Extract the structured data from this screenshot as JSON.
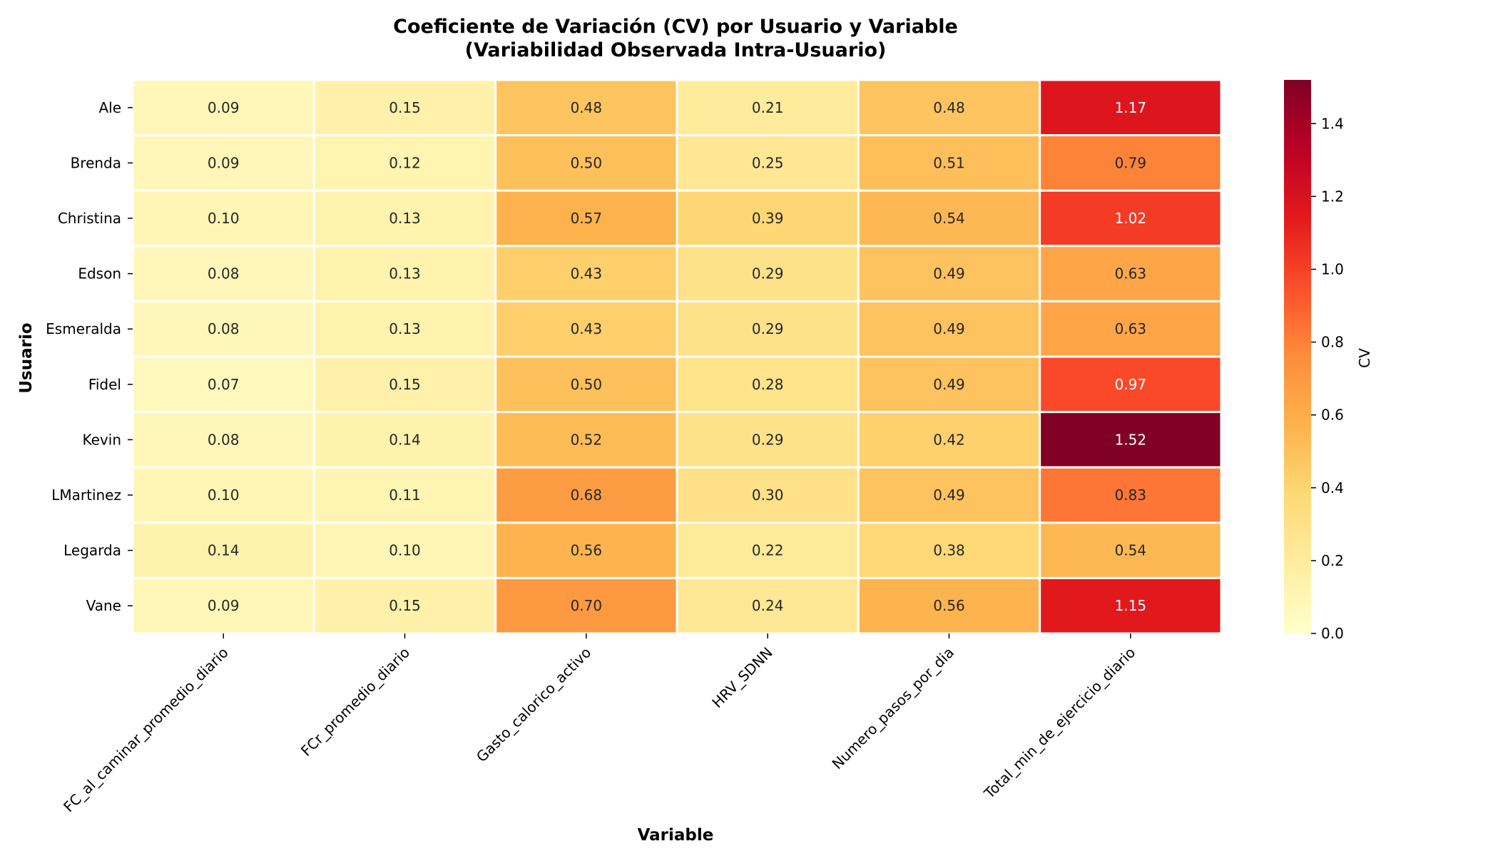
{
  "chart_data": {
    "type": "heatmap",
    "title": "Coeficiente de Variación (CV) por Usuario y Variable",
    "subtitle": "(Variabilidad Observada Intra-Usuario)",
    "xlabel": "Variable",
    "ylabel": "Usuario",
    "colorbar_label": "CV",
    "colormap": "YlOrRd",
    "vmin": 0,
    "vmax": 1.52,
    "colorbar_ticks": [
      "0.0",
      "0.2",
      "0.4",
      "0.6",
      "0.8",
      "1.0",
      "1.2",
      "1.4"
    ],
    "columns": [
      "FC_al_caminar_promedio_diario",
      "FCr_promedio_diario",
      "Gasto_calorico_activo",
      "HRV_SDNN",
      "Numero_pasos_por_dia",
      "Total_min_de_ejercicio_diario"
    ],
    "rows": [
      "Ale",
      "Brenda",
      "Christina",
      "Edson",
      "Esmeralda",
      "Fidel",
      "Kevin",
      "LMartinez",
      "Legarda",
      "Vane"
    ],
    "values": [
      [
        0.09,
        0.15,
        0.48,
        0.21,
        0.48,
        1.17
      ],
      [
        0.09,
        0.12,
        0.5,
        0.25,
        0.51,
        0.79
      ],
      [
        0.1,
        0.13,
        0.57,
        0.39,
        0.54,
        1.02
      ],
      [
        0.08,
        0.13,
        0.43,
        0.29,
        0.49,
        0.63
      ],
      [
        0.08,
        0.13,
        0.43,
        0.29,
        0.49,
        0.63
      ],
      [
        0.07,
        0.15,
        0.5,
        0.28,
        0.49,
        0.97
      ],
      [
        0.08,
        0.14,
        0.52,
        0.29,
        0.42,
        1.52
      ],
      [
        0.1,
        0.11,
        0.68,
        0.3,
        0.49,
        0.83
      ],
      [
        0.14,
        0.1,
        0.56,
        0.22,
        0.38,
        0.54
      ],
      [
        0.09,
        0.15,
        0.7,
        0.24,
        0.56,
        1.15
      ]
    ],
    "annotation_format": "2 decimals",
    "grid": false,
    "cell_linecolor": "#ffffff"
  }
}
